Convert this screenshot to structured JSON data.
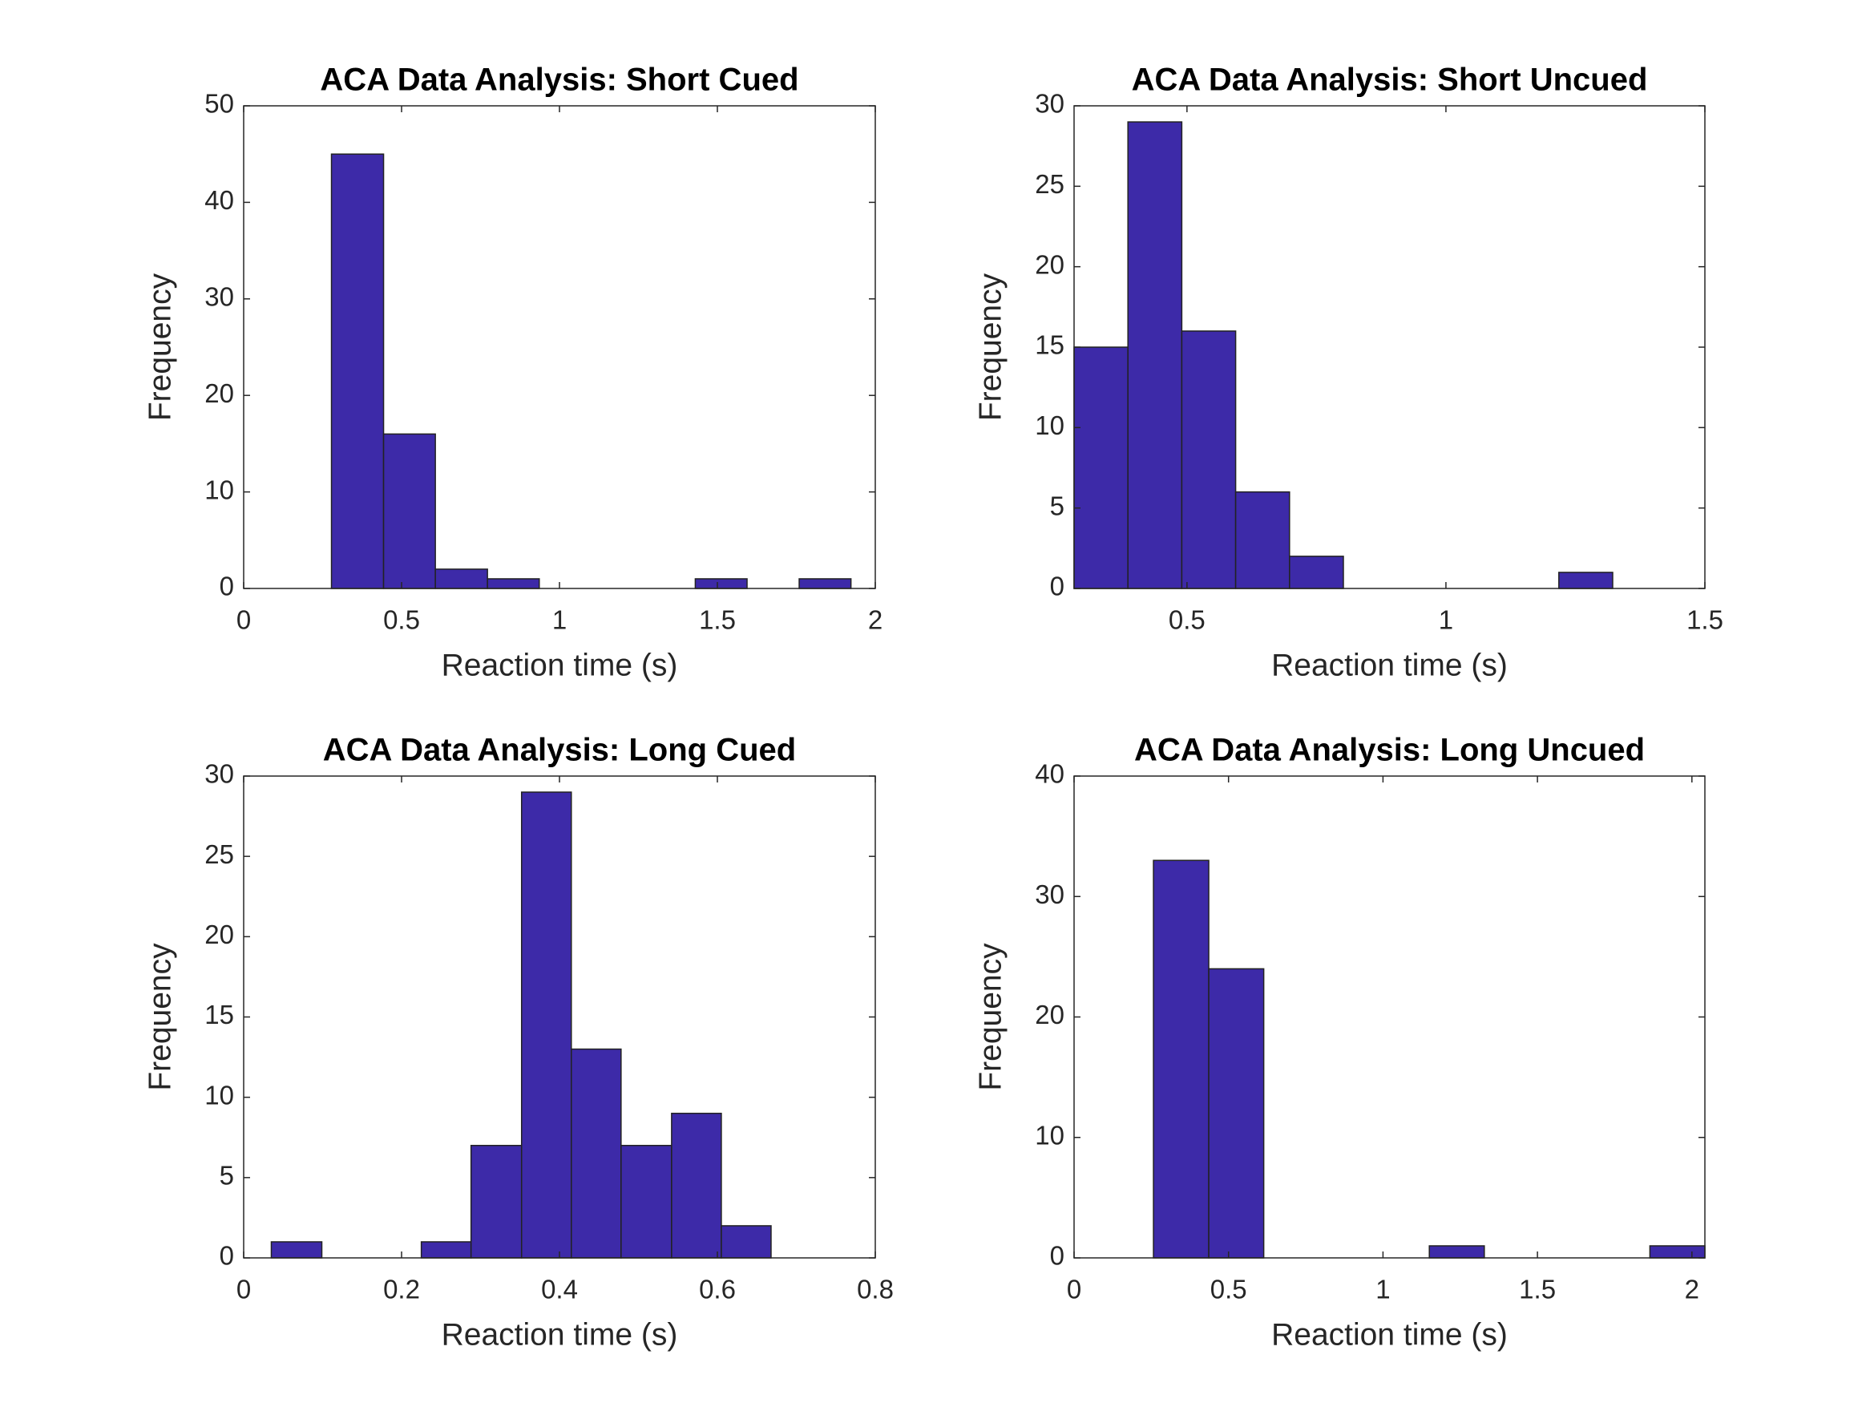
{
  "chart_data": [
    {
      "type": "histogram",
      "title": "ACA Data Analysis: Short Cued",
      "xlabel": "Reaction time (s)",
      "ylabel": "Frequency",
      "bins": [
        0.278,
        0.443,
        0.607,
        0.772,
        0.936,
        1.101,
        1.265,
        1.43,
        1.594,
        1.759,
        1.923
      ],
      "values": [
        45,
        16,
        2,
        1,
        0,
        0,
        0,
        1,
        0,
        1
      ],
      "color": "#3d2aa8",
      "xlim": [
        0,
        2
      ],
      "ylim": [
        0,
        50
      ],
      "xticks": [
        0,
        0.5,
        1,
        1.5,
        2
      ],
      "yticks": [
        0,
        10,
        20,
        30,
        40,
        50
      ]
    },
    {
      "type": "histogram",
      "title": "ACA Data Analysis: Short Uncued",
      "xlabel": "Reaction time (s)",
      "ylabel": "Frequency",
      "bins": [
        0.282,
        0.386,
        0.49,
        0.594,
        0.698,
        0.802,
        0.906,
        1.01,
        1.114,
        1.218,
        1.322
      ],
      "values": [
        15,
        29,
        16,
        6,
        2,
        0,
        0,
        0,
        0,
        1
      ],
      "color": "#3d2aa8",
      "xlim": [
        0.282,
        1.5
      ],
      "ylim": [
        0,
        30
      ],
      "xticks": [
        0.5,
        1,
        1.5
      ],
      "yticks": [
        0,
        5,
        10,
        15,
        20,
        25,
        30
      ]
    },
    {
      "type": "histogram",
      "title": "ACA Data Analysis: Long Cued",
      "xlabel": "Reaction time (s)",
      "ylabel": "Frequency",
      "bins": [
        0.035,
        0.099,
        0.162,
        0.225,
        0.288,
        0.352,
        0.415,
        0.478,
        0.542,
        0.605,
        0.668
      ],
      "values": [
        1,
        0,
        0,
        1,
        7,
        29,
        13,
        7,
        9,
        2
      ],
      "color": "#3d2aa8",
      "xlim": [
        0,
        0.8
      ],
      "ylim": [
        0,
        30
      ],
      "xticks": [
        0,
        0.2,
        0.4,
        0.6,
        0.8
      ],
      "yticks": [
        0,
        5,
        10,
        15,
        20,
        25,
        30
      ]
    },
    {
      "type": "histogram",
      "title": "ACA Data Analysis: Long Uncued",
      "xlabel": "Reaction time (s)",
      "ylabel": "Frequency",
      "bins": [
        0.257,
        0.436,
        0.614,
        0.793,
        0.971,
        1.15,
        1.328,
        1.507,
        1.685,
        1.864,
        2.042
      ],
      "values": [
        33,
        24,
        0,
        0,
        0,
        1,
        0,
        0,
        0,
        1
      ],
      "color": "#3d2aa8",
      "xlim": [
        0,
        2.042
      ],
      "ylim": [
        0,
        40
      ],
      "xticks": [
        0,
        0.5,
        1,
        1.5,
        2
      ],
      "yticks": [
        0,
        10,
        20,
        30,
        40
      ]
    }
  ]
}
